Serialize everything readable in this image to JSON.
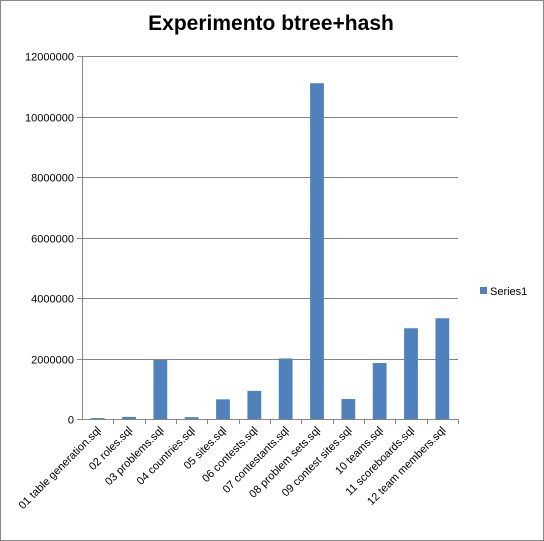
{
  "chart_data": {
    "type": "bar",
    "title": "Experimento btree+hash",
    "xlabel": "",
    "ylabel": "",
    "ylim": [
      0,
      12000000
    ],
    "yticks": [
      0,
      2000000,
      4000000,
      6000000,
      8000000,
      10000000,
      12000000
    ],
    "y_tick_labels": [
      "0",
      "2000000",
      "4000000",
      "6000000",
      "8000000",
      "10000000",
      "12000000"
    ],
    "grid": true,
    "legend_position": "right",
    "categories": [
      "01 table generation.sql",
      "02 roles.sql",
      "03 problems.sql",
      "04 countries.sql",
      "05 sites.sql",
      "06 contests.sql",
      "07 contestants.sql",
      "08 problem sets.sql",
      "09 contest sites.sql",
      "10 teams.sql",
      "11 scoreboards.sql",
      "12 team members.sql"
    ],
    "series": [
      {
        "name": "Series1",
        "color": "#4F81BD",
        "values": [
          30000,
          70000,
          1950000,
          60000,
          650000,
          930000,
          2000000,
          11100000,
          660000,
          1850000,
          3000000,
          3330000
        ]
      }
    ]
  }
}
